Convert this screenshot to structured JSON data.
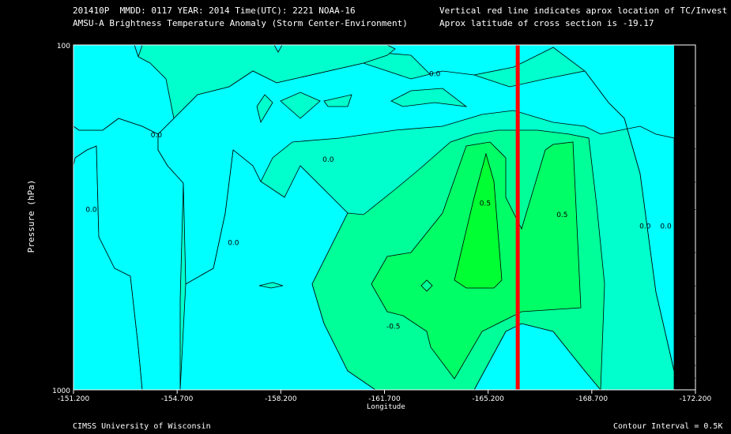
{
  "header": {
    "line1": "201410P  MMDD: 0117 YEAR: 2014 Time(UTC): 2221 NOAA-16",
    "line2": "AMSU-A Brightness Temperature Anomaly (Storm Center-Environment)",
    "right1": "Vertical red line indicates aprox location of TC/Invest",
    "right2": "Aprox latitude of cross section is -19.17"
  },
  "footer": {
    "credit": "CIMSS University of Wisconsin",
    "interval": "Contour Interval = 0.5K"
  },
  "colors": {
    "background": "#000000",
    "lev_neg": "#00FFFF",
    "lev0": "#00FFCC",
    "lev05": "#00FF99",
    "lev1": "#00FF66",
    "lev15": "#00FF33",
    "marker": "#FF0000"
  },
  "chart_data": {
    "type": "contour",
    "title": "AMSU-A Brightness Temperature Anomaly (Storm Center-Environment)",
    "xlabel": "Longitude",
    "ylabel": "Pressure (hPa)",
    "x_ticks": [
      "-151.200",
      "-154.700",
      "-158.200",
      "-161.700",
      "-165.200",
      "-168.700",
      "-172.200"
    ],
    "x_range": [
      -151.2,
      -172.2
    ],
    "y_range": [
      1000,
      100
    ],
    "y_tick_labels": [
      "100",
      "1000"
    ],
    "y_ticks_minor": [
      150,
      200,
      250,
      300,
      400,
      500,
      600,
      700,
      850,
      925
    ],
    "tc_longitude": -166.2,
    "contour_interval_K": 0.5,
    "contour_labels": [
      {
        "text": "0.0",
        "lon": -151.8,
        "p": 305
      },
      {
        "text": "0.0",
        "lon": -154.0,
        "p": 185
      },
      {
        "text": "0.0",
        "lon": -156.6,
        "p": 380
      },
      {
        "text": "0.0",
        "lon": -159.8,
        "p": 218
      },
      {
        "text": "0.0",
        "lon": -163.4,
        "p": 123
      },
      {
        "text": "0.0",
        "lon": -170.5,
        "p": 340
      },
      {
        "text": "0.0",
        "lon": -171.2,
        "p": 340
      },
      {
        "text": "0.5",
        "lon": -165.1,
        "p": 292
      },
      {
        "text": "0.5",
        "lon": -167.7,
        "p": 315
      },
      {
        "text": "-0.5",
        "lon": -162.0,
        "p": 665
      }
    ]
  }
}
